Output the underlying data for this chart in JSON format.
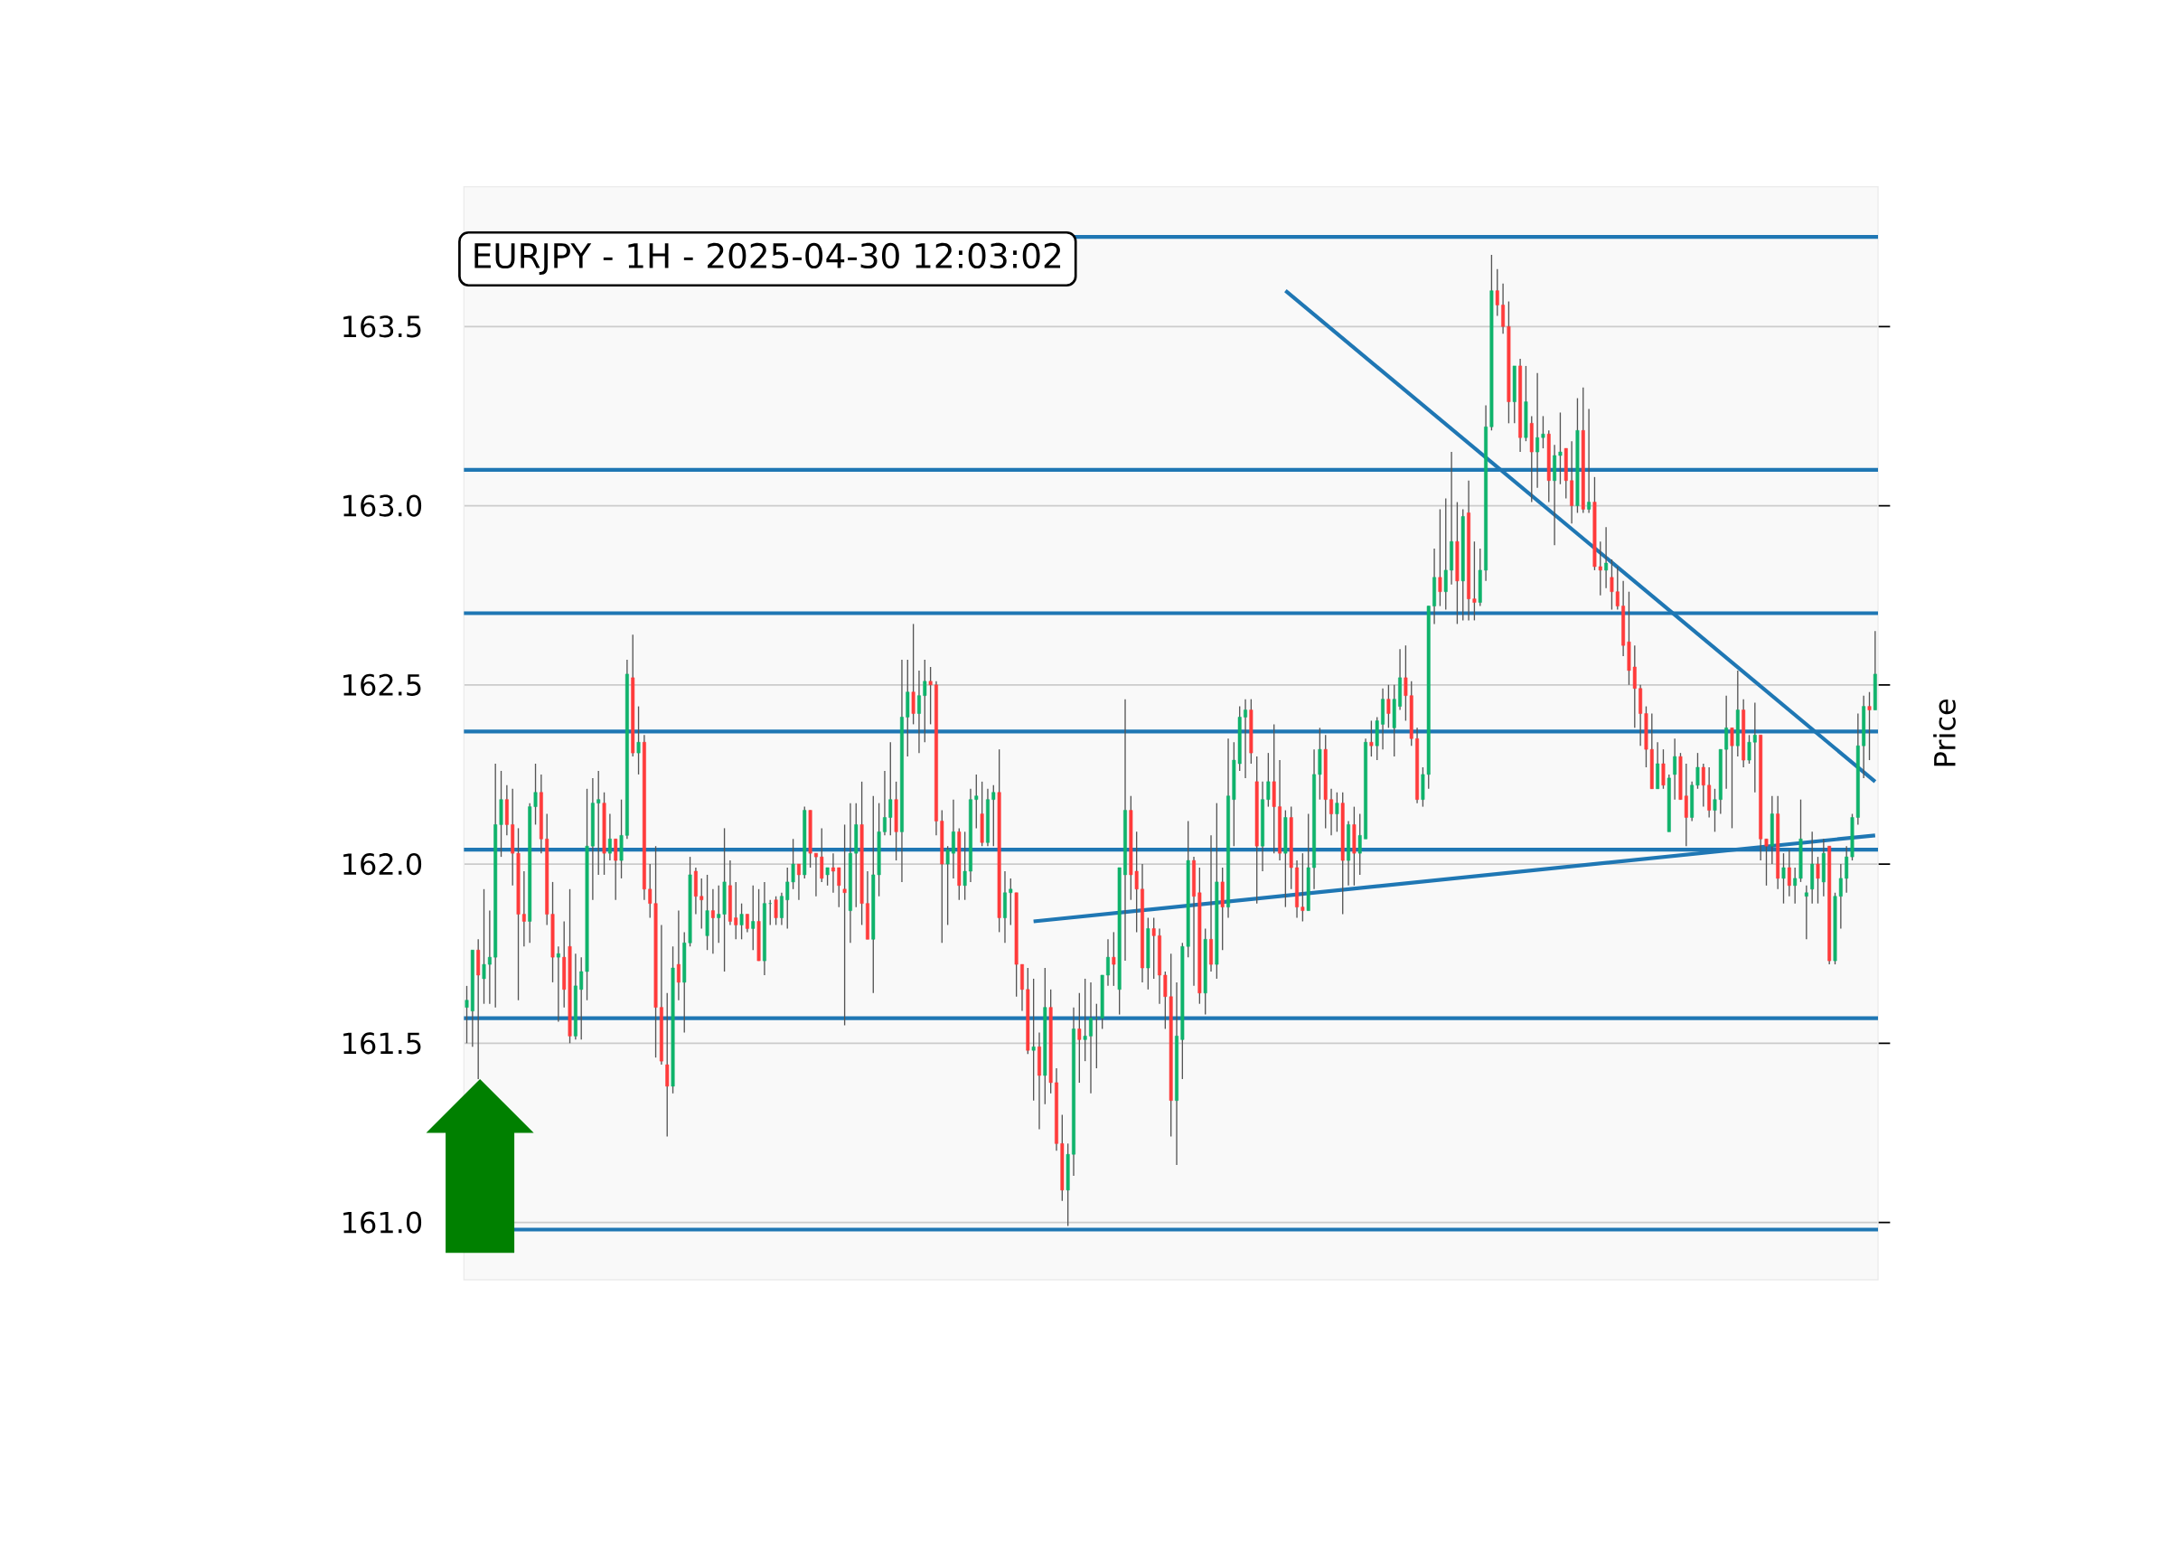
{
  "chart_data": {
    "type": "candlestick",
    "title": "EURJPY - 1H - 2025-04-30 12:03:02",
    "ylabel": "Price",
    "categories": [
      null,
      null,
      null,
      null,
      null,
      null,
      null,
      null,
      null,
      null,
      null,
      null,
      null,
      null,
      null,
      null,
      null,
      null,
      null,
      null,
      null,
      null,
      null,
      null,
      null,
      null,
      null,
      null,
      null,
      null,
      null,
      null,
      null,
      null,
      null,
      null,
      null,
      null,
      null,
      null,
      null,
      null,
      null,
      null,
      null,
      null,
      null,
      null,
      null,
      null,
      null,
      null,
      null,
      null,
      null,
      null,
      null,
      null,
      null,
      null,
      null,
      null,
      null,
      null,
      null,
      null,
      null,
      null,
      null,
      null,
      null,
      null,
      null,
      null,
      null,
      null,
      null,
      null,
      null,
      null,
      null,
      null,
      null,
      null,
      null,
      null,
      null,
      null,
      null,
      null,
      null,
      null,
      null,
      null,
      null,
      null,
      null,
      null,
      null,
      null,
      null,
      null,
      null,
      null,
      null,
      null,
      null,
      null,
      null,
      null,
      null,
      null,
      null,
      null,
      null,
      null,
      null,
      null,
      null,
      null,
      null,
      null,
      null,
      null,
      null,
      null,
      null,
      null,
      null,
      null,
      null,
      null,
      null,
      null,
      null,
      null,
      null,
      null,
      null,
      null,
      null,
      null,
      null,
      null,
      null,
      null,
      null,
      null,
      null,
      null,
      null,
      null,
      null,
      null,
      null,
      null,
      null,
      null,
      null,
      null,
      null,
      null,
      null,
      null,
      null,
      null,
      null,
      null,
      null,
      null,
      null,
      null,
      null,
      null,
      null,
      null,
      null,
      null,
      null,
      null,
      null,
      null,
      null,
      null,
      null,
      null,
      null,
      null,
      null,
      null,
      null,
      null,
      null,
      null,
      null,
      null,
      null,
      null,
      null,
      null,
      null,
      null,
      null,
      null,
      null,
      null,
      null,
      null,
      null,
      null,
      null,
      null,
      null,
      null,
      null,
      null,
      null,
      null,
      null,
      null,
      null,
      null,
      null,
      null,
      null,
      null,
      null,
      null,
      null,
      null,
      null,
      null,
      null,
      null,
      null,
      null,
      null,
      null,
      null,
      null,
      null,
      null,
      null,
      null,
      null,
      null,
      null
    ],
    "ohlc": [
      [
        161.6,
        161.66,
        161.5,
        161.62
      ],
      [
        161.59,
        161.76,
        161.49,
        161.76
      ],
      [
        161.76,
        161.79,
        161.4,
        161.69
      ],
      [
        161.68,
        161.93,
        161.61,
        161.72
      ],
      [
        161.72,
        161.87,
        161.61,
        161.74
      ],
      [
        161.74,
        162.28,
        161.6,
        162.11
      ],
      [
        162.11,
        162.26,
        162.02,
        162.18
      ],
      [
        162.18,
        162.22,
        162.08,
        162.11
      ],
      [
        162.11,
        162.21,
        161.94,
        162.03
      ],
      [
        162.03,
        162.1,
        161.62,
        161.86
      ],
      [
        161.86,
        161.98,
        161.77,
        161.84
      ],
      [
        161.84,
        162.17,
        161.78,
        162.16
      ],
      [
        162.16,
        162.28,
        162.11,
        162.2
      ],
      [
        162.2,
        162.25,
        162.03,
        162.07
      ],
      [
        162.07,
        162.14,
        161.83,
        161.86
      ],
      [
        161.86,
        161.95,
        161.67,
        161.74
      ],
      [
        161.74,
        161.77,
        161.56,
        161.75
      ],
      [
        161.74,
        161.84,
        161.6,
        161.65
      ],
      [
        161.77,
        161.93,
        161.5,
        161.52
      ],
      [
        161.52,
        161.75,
        161.51,
        161.66
      ],
      [
        161.65,
        161.74,
        161.51,
        161.7
      ],
      [
        161.7,
        162.21,
        161.62,
        162.05
      ],
      [
        162.05,
        162.24,
        161.9,
        162.17
      ],
      [
        162.17,
        162.26,
        161.97,
        162.18
      ],
      [
        162.17,
        162.2,
        161.97,
        162.03
      ],
      [
        162.03,
        162.14,
        162.01,
        162.07
      ],
      [
        162.07,
        162.07,
        161.9,
        162.01
      ],
      [
        162.01,
        162.18,
        161.96,
        162.08
      ],
      [
        162.08,
        162.57,
        162.07,
        162.53
      ],
      [
        162.52,
        162.64,
        162.3,
        162.31
      ],
      [
        162.31,
        162.44,
        162.25,
        162.34
      ],
      [
        162.34,
        162.36,
        161.9,
        161.93
      ],
      [
        161.93,
        162.0,
        161.85,
        161.89
      ],
      [
        161.89,
        162.05,
        161.46,
        161.6
      ],
      [
        161.6,
        161.83,
        161.44,
        161.45
      ],
      [
        161.44,
        161.64,
        161.24,
        161.38
      ],
      [
        161.38,
        161.77,
        161.36,
        161.71
      ],
      [
        161.72,
        161.87,
        161.62,
        161.67
      ],
      [
        161.67,
        161.81,
        161.53,
        161.78
      ],
      [
        161.78,
        162.02,
        161.77,
        161.97
      ],
      [
        161.98,
        161.99,
        161.86,
        161.91
      ],
      [
        161.91,
        161.96,
        161.82,
        161.9
      ],
      [
        161.8,
        161.97,
        161.76,
        161.87
      ],
      [
        161.87,
        161.93,
        161.75,
        161.85
      ],
      [
        161.85,
        161.94,
        161.78,
        161.86
      ],
      [
        161.86,
        162.1,
        161.7,
        161.95
      ],
      [
        161.94,
        162.01,
        161.83,
        161.84
      ],
      [
        161.85,
        161.95,
        161.79,
        161.83
      ],
      [
        161.83,
        161.89,
        161.79,
        161.86
      ],
      [
        161.86,
        161.86,
        161.81,
        161.82
      ],
      [
        161.82,
        161.94,
        161.76,
        161.84
      ],
      [
        161.84,
        161.93,
        161.73,
        161.73
      ],
      [
        161.73,
        161.95,
        161.69,
        161.89
      ],
      [
        161.89,
        161.9,
        161.83,
        161.89
      ],
      [
        161.9,
        161.91,
        161.83,
        161.85
      ],
      [
        161.85,
        161.92,
        161.83,
        161.91
      ],
      [
        161.9,
        161.99,
        161.82,
        161.95
      ],
      [
        161.95,
        162.07,
        161.93,
        162.0
      ],
      [
        162.0,
        162.0,
        161.9,
        161.97
      ],
      [
        161.97,
        162.16,
        161.96,
        162.15
      ],
      [
        162.15,
        162.15,
        161.99,
        162.03
      ],
      [
        162.03,
        162.03,
        161.91,
        162.02
      ],
      [
        162.02,
        162.1,
        161.95,
        161.96
      ],
      [
        161.97,
        161.99,
        161.94,
        161.99
      ],
      [
        161.99,
        162.03,
        161.92,
        161.98
      ],
      [
        161.99,
        161.99,
        161.88,
        161.94
      ],
      [
        161.93,
        162.11,
        161.55,
        161.92
      ],
      [
        161.87,
        162.17,
        161.78,
        162.03
      ],
      [
        162.03,
        162.17,
        161.88,
        162.11
      ],
      [
        162.11,
        162.23,
        161.83,
        161.89
      ],
      [
        161.89,
        161.98,
        161.79,
        161.79
      ],
      [
        161.79,
        162.19,
        161.64,
        161.97
      ],
      [
        161.97,
        162.17,
        161.91,
        162.09
      ],
      [
        162.09,
        162.26,
        162.08,
        162.13
      ],
      [
        162.13,
        162.34,
        162.08,
        162.18
      ],
      [
        162.18,
        162.23,
        162.01,
        162.09
      ],
      [
        162.09,
        162.57,
        161.95,
        162.41
      ],
      [
        162.41,
        162.57,
        162.3,
        162.48
      ],
      [
        162.48,
        162.67,
        162.39,
        162.42
      ],
      [
        162.42,
        162.54,
        162.31,
        162.47
      ],
      [
        162.47,
        162.57,
        162.34,
        162.51
      ],
      [
        162.51,
        162.55,
        162.39,
        162.5
      ],
      [
        162.5,
        162.51,
        162.08,
        162.12
      ],
      [
        162.12,
        162.15,
        161.78,
        162.0
      ],
      [
        162.0,
        162.05,
        161.83,
        162.04
      ],
      [
        162.03,
        162.18,
        161.96,
        162.09
      ],
      [
        162.09,
        162.1,
        161.9,
        161.94
      ],
      [
        161.94,
        162.09,
        161.9,
        161.98
      ],
      [
        161.98,
        162.21,
        161.95,
        162.18
      ],
      [
        162.18,
        162.25,
        162.1,
        162.19
      ],
      [
        162.14,
        162.23,
        162.05,
        162.06
      ],
      [
        162.06,
        162.21,
        162.05,
        162.18
      ],
      [
        162.18,
        162.22,
        162.05,
        162.2
      ],
      [
        162.2,
        162.32,
        161.81,
        161.85
      ],
      [
        161.85,
        161.98,
        161.78,
        161.92
      ],
      [
        161.92,
        161.96,
        161.83,
        161.93
      ],
      [
        161.92,
        161.92,
        161.63,
        161.72
      ],
      [
        161.72,
        161.72,
        161.59,
        161.65
      ],
      [
        161.65,
        161.71,
        161.47,
        161.48
      ],
      [
        161.48,
        161.68,
        161.34,
        161.49
      ],
      [
        161.49,
        161.53,
        161.26,
        161.41
      ],
      [
        161.41,
        161.71,
        161.33,
        161.6
      ],
      [
        161.6,
        161.65,
        161.36,
        161.39
      ],
      [
        161.39,
        161.43,
        161.2,
        161.22
      ],
      [
        161.22,
        161.3,
        161.06,
        161.09
      ],
      [
        161.09,
        161.22,
        160.99,
        161.19
      ],
      [
        161.19,
        161.6,
        161.13,
        161.54
      ],
      [
        161.54,
        161.64,
        161.39,
        161.51
      ],
      [
        161.51,
        161.68,
        161.45,
        161.52
      ],
      [
        161.52,
        161.67,
        161.36,
        161.57
      ],
      [
        161.57,
        161.61,
        161.43,
        161.57
      ],
      [
        161.57,
        161.69,
        161.54,
        161.69
      ],
      [
        161.69,
        161.79,
        161.66,
        161.74
      ],
      [
        161.74,
        161.81,
        161.66,
        161.72
      ],
      [
        161.65,
        161.99,
        161.58,
        161.99
      ],
      [
        161.97,
        162.46,
        161.73,
        162.15
      ],
      [
        162.15,
        162.19,
        161.9,
        161.97
      ],
      [
        161.98,
        162.09,
        161.81,
        161.93
      ],
      [
        161.93,
        162.0,
        161.67,
        161.71
      ],
      [
        161.71,
        161.85,
        161.65,
        161.82
      ],
      [
        161.82,
        161.85,
        161.68,
        161.8
      ],
      [
        161.8,
        161.82,
        161.61,
        161.69
      ],
      [
        161.69,
        161.7,
        161.54,
        161.63
      ],
      [
        161.63,
        161.75,
        161.24,
        161.34
      ],
      [
        161.34,
        161.67,
        161.16,
        161.52
      ],
      [
        161.51,
        161.78,
        161.4,
        161.77
      ],
      [
        161.77,
        162.12,
        161.74,
        162.01
      ],
      [
        162.01,
        162.02,
        161.66,
        161.91
      ],
      [
        161.92,
        161.99,
        161.61,
        161.64
      ],
      [
        161.64,
        161.82,
        161.58,
        161.79
      ],
      [
        161.79,
        162.08,
        161.7,
        161.72
      ],
      [
        161.72,
        162.17,
        161.68,
        161.95
      ],
      [
        161.95,
        161.99,
        161.76,
        161.88
      ],
      [
        161.88,
        162.35,
        161.85,
        162.19
      ],
      [
        162.18,
        162.34,
        162.05,
        162.29
      ],
      [
        162.28,
        162.44,
        162.26,
        162.41
      ],
      [
        162.41,
        162.46,
        162.24,
        162.43
      ],
      [
        162.43,
        162.46,
        162.28,
        162.31
      ],
      [
        162.23,
        162.3,
        161.89,
        162.05
      ],
      [
        162.05,
        162.23,
        161.98,
        162.18
      ],
      [
        162.18,
        162.31,
        162.16,
        162.23
      ],
      [
        162.23,
        162.39,
        162.03,
        162.16
      ],
      [
        162.16,
        162.29,
        162.01,
        162.03
      ],
      [
        162.03,
        162.15,
        161.88,
        162.13
      ],
      [
        162.13,
        162.16,
        161.93,
        161.99
      ],
      [
        161.99,
        162.01,
        161.85,
        161.88
      ],
      [
        161.88,
        162.03,
        161.84,
        161.87
      ],
      [
        161.87,
        162.14,
        161.87,
        161.99
      ],
      [
        161.99,
        162.32,
        161.93,
        162.25
      ],
      [
        162.25,
        162.38,
        162.18,
        162.32
      ],
      [
        162.32,
        162.36,
        162.1,
        162.18
      ],
      [
        162.18,
        162.21,
        162.08,
        162.14
      ],
      [
        162.14,
        162.2,
        162.09,
        162.17
      ],
      [
        162.17,
        162.2,
        161.86,
        162.01
      ],
      [
        162.01,
        162.12,
        161.94,
        162.11
      ],
      [
        162.11,
        162.16,
        161.94,
        162.03
      ],
      [
        162.03,
        162.14,
        161.97,
        162.08
      ],
      [
        162.07,
        162.35,
        162.07,
        162.34
      ],
      [
        162.34,
        162.4,
        162.3,
        162.33
      ],
      [
        162.33,
        162.41,
        162.29,
        162.4
      ],
      [
        162.39,
        162.49,
        162.32,
        162.46
      ],
      [
        162.46,
        162.5,
        162.38,
        162.42
      ],
      [
        162.38,
        162.5,
        162.3,
        162.46
      ],
      [
        162.44,
        162.6,
        162.43,
        162.52
      ],
      [
        162.52,
        162.61,
        162.4,
        162.47
      ],
      [
        162.47,
        162.51,
        162.33,
        162.35
      ],
      [
        162.35,
        162.38,
        162.17,
        162.18
      ],
      [
        162.18,
        162.27,
        162.16,
        162.25
      ],
      [
        162.25,
        162.72,
        162.21,
        162.72
      ],
      [
        162.72,
        162.88,
        162.67,
        162.8
      ],
      [
        162.8,
        162.99,
        162.72,
        162.76
      ],
      [
        162.76,
        163.02,
        162.71,
        162.82
      ],
      [
        162.82,
        163.15,
        162.78,
        162.9
      ],
      [
        162.9,
        163.01,
        162.67,
        162.79
      ],
      [
        162.79,
        162.99,
        162.68,
        162.97
      ],
      [
        162.98,
        163.07,
        162.68,
        162.74
      ],
      [
        162.74,
        162.9,
        162.68,
        162.73
      ],
      [
        162.73,
        162.88,
        162.72,
        162.82
      ],
      [
        162.82,
        163.28,
        162.79,
        163.22
      ],
      [
        163.22,
        163.7,
        163.21,
        163.6
      ],
      [
        163.6,
        163.66,
        163.53,
        163.56
      ],
      [
        163.56,
        163.62,
        163.48,
        163.5
      ],
      [
        163.5,
        163.57,
        163.23,
        163.29
      ],
      [
        163.29,
        163.39,
        163.23,
        163.39
      ],
      [
        163.39,
        163.41,
        163.15,
        163.19
      ],
      [
        163.19,
        163.39,
        163.18,
        163.29
      ],
      [
        163.23,
        163.25,
        163.01,
        163.15
      ],
      [
        163.15,
        163.37,
        163.05,
        163.19
      ],
      [
        163.19,
        163.25,
        163.16,
        163.2
      ],
      [
        163.2,
        163.21,
        163.01,
        163.07
      ],
      [
        163.07,
        163.17,
        162.89,
        163.14
      ],
      [
        163.14,
        163.26,
        163.06,
        163.15
      ],
      [
        163.16,
        163.16,
        163.02,
        163.07
      ],
      [
        163.07,
        163.18,
        162.95,
        163.0
      ],
      [
        163.0,
        163.3,
        162.98,
        163.21
      ],
      [
        163.21,
        163.33,
        162.98,
        162.99
      ],
      [
        162.99,
        163.27,
        162.98,
        163.01
      ],
      [
        163.01,
        163.08,
        162.82,
        162.83
      ],
      [
        162.83,
        162.9,
        162.75,
        162.82
      ],
      [
        162.82,
        162.94,
        162.77,
        162.84
      ],
      [
        162.8,
        162.85,
        162.71,
        162.76
      ],
      [
        162.76,
        162.83,
        162.71,
        162.72
      ],
      [
        162.72,
        162.79,
        162.58,
        162.61
      ],
      [
        162.62,
        162.76,
        162.5,
        162.54
      ],
      [
        162.55,
        162.61,
        162.38,
        162.49
      ],
      [
        162.49,
        162.5,
        162.33,
        162.42
      ],
      [
        162.42,
        162.44,
        162.27,
        162.32
      ],
      [
        162.32,
        162.42,
        162.21,
        162.21
      ],
      [
        162.21,
        162.34,
        162.21,
        162.28
      ],
      [
        162.28,
        162.32,
        162.21,
        162.22
      ],
      [
        162.09,
        162.25,
        162.09,
        162.24
      ],
      [
        162.25,
        162.35,
        162.18,
        162.3
      ],
      [
        162.3,
        162.31,
        162.18,
        162.18
      ],
      [
        162.19,
        162.28,
        162.05,
        162.13
      ],
      [
        162.13,
        162.23,
        162.12,
        162.22
      ],
      [
        162.22,
        162.31,
        162.21,
        162.27
      ],
      [
        162.27,
        162.28,
        162.16,
        162.22
      ],
      [
        162.22,
        162.27,
        162.13,
        162.15
      ],
      [
        162.15,
        162.21,
        162.09,
        162.18
      ],
      [
        162.18,
        162.32,
        162.14,
        162.32
      ],
      [
        162.32,
        162.47,
        162.21,
        162.38
      ],
      [
        162.38,
        162.38,
        162.1,
        162.33
      ],
      [
        162.33,
        162.54,
        162.3,
        162.43
      ],
      [
        162.43,
        162.46,
        162.27,
        162.29
      ],
      [
        162.29,
        162.36,
        162.28,
        162.34
      ],
      [
        162.34,
        162.45,
        162.2,
        162.36
      ],
      [
        162.36,
        162.36,
        162.01,
        162.07
      ],
      [
        162.07,
        162.07,
        161.94,
        162.05
      ],
      [
        162.05,
        162.19,
        162.0,
        162.14
      ],
      [
        162.14,
        162.19,
        161.93,
        161.96
      ],
      [
        161.96,
        162.03,
        161.89,
        161.99
      ],
      [
        161.99,
        162.04,
        161.91,
        161.94
      ],
      [
        161.94,
        161.99,
        161.89,
        161.96
      ],
      [
        161.96,
        162.18,
        161.95,
        162.07
      ],
      [
        161.91,
        161.94,
        161.79,
        161.92
      ],
      [
        161.93,
        162.09,
        161.89,
        162.0
      ],
      [
        162.0,
        162.02,
        161.89,
        161.96
      ],
      [
        161.95,
        162.07,
        161.91,
        162.03
      ],
      [
        162.05,
        162.05,
        161.72,
        161.73
      ],
      [
        161.73,
        161.92,
        161.72,
        161.91
      ],
      [
        161.91,
        162.0,
        161.82,
        161.96
      ],
      [
        161.96,
        162.05,
        161.92,
        162.02
      ],
      [
        162.02,
        162.14,
        162.01,
        162.13
      ],
      [
        162.13,
        162.42,
        162.11,
        162.33
      ],
      [
        162.33,
        162.47,
        162.24,
        162.44
      ],
      [
        162.44,
        162.48,
        162.29,
        162.43
      ],
      [
        162.43,
        162.65,
        162.43,
        162.53
      ]
    ],
    "series": [
      {
        "type": "line",
        "color": "#1f77b4",
        "values": [
          null,
          null,
          null,
          null,
          null,
          null,
          null,
          null,
          null,
          null,
          null,
          null,
          null,
          null,
          null,
          null,
          null,
          null,
          null,
          null,
          null,
          null,
          null,
          null,
          null,
          null,
          null,
          null,
          null,
          null,
          null,
          null,
          null,
          null,
          null,
          null,
          null,
          null,
          null,
          null,
          null,
          null,
          null,
          null,
          null,
          null,
          null,
          null,
          null,
          null,
          null,
          null,
          null,
          null,
          null,
          null,
          null,
          null,
          null,
          null,
          null,
          null,
          null,
          null,
          null,
          null,
          null,
          null,
          null,
          null,
          null,
          null,
          null,
          null,
          null,
          null,
          null,
          null,
          null,
          null,
          null,
          null,
          null,
          null,
          null,
          null,
          null,
          null,
          null,
          null,
          null,
          null,
          null,
          null,
          null,
          null,
          null,
          null,
          null,
          null,
          null,
          null,
          null,
          null,
          null,
          null,
          null,
          null,
          null,
          null,
          null,
          null,
          null,
          null,
          null,
          null,
          null,
          null,
          null,
          null,
          null,
          null,
          null,
          null,
          null,
          null,
          null,
          null,
          null,
          null,
          null,
          null,
          null,
          null,
          null,
          null,
          null,
          null,
          null,
          null,
          null,
          null,
          null,
          163.6,
          null,
          null,
          null,
          null,
          null,
          null,
          null,
          null,
          null,
          null,
          null,
          null,
          null,
          null,
          null,
          null,
          null,
          null,
          null,
          null,
          null,
          null,
          null,
          null,
          null,
          null,
          null,
          null,
          null,
          null,
          null,
          null,
          null,
          null,
          null,
          null,
          null,
          null,
          null,
          null,
          null,
          null,
          null,
          null,
          null,
          null,
          null,
          null,
          null,
          null,
          null,
          null,
          null,
          null,
          null,
          null,
          null,
          null,
          null,
          null,
          null,
          null,
          null,
          null,
          null,
          null,
          null,
          null,
          null,
          null,
          null,
          null,
          null,
          null,
          null,
          null,
          null,
          null,
          null,
          null,
          null,
          null,
          null,
          null,
          null,
          null,
          null,
          null,
          null,
          null,
          null,
          null,
          null,
          null,
          null,
          null,
          null,
          null,
          null,
          null,
          null,
          null,
          162.23
        ]
      },
      {
        "type": "line",
        "color": "#1f77b4",
        "values": [
          null,
          null,
          null,
          null,
          null,
          null,
          null,
          null,
          null,
          null,
          null,
          null,
          null,
          null,
          null,
          null,
          null,
          null,
          null,
          null,
          null,
          null,
          null,
          null,
          null,
          null,
          null,
          null,
          null,
          null,
          null,
          null,
          null,
          null,
          null,
          null,
          null,
          null,
          null,
          null,
          null,
          null,
          null,
          null,
          null,
          null,
          null,
          null,
          null,
          null,
          null,
          null,
          null,
          null,
          null,
          null,
          null,
          null,
          null,
          null,
          null,
          null,
          null,
          null,
          null,
          null,
          null,
          null,
          null,
          null,
          null,
          null,
          null,
          null,
          null,
          null,
          null,
          null,
          null,
          null,
          null,
          null,
          null,
          null,
          null,
          null,
          null,
          null,
          null,
          null,
          null,
          null,
          null,
          null,
          null,
          null,
          null,
          null,
          null,
          161.84,
          null,
          null,
          null,
          null,
          null,
          null,
          null,
          null,
          null,
          null,
          null,
          null,
          null,
          null,
          null,
          null,
          null,
          null,
          null,
          null,
          null,
          null,
          null,
          null,
          null,
          null,
          null,
          null,
          null,
          null,
          null,
          null,
          null,
          null,
          null,
          null,
          null,
          null,
          null,
          null,
          null,
          null,
          null,
          null,
          null,
          null,
          null,
          null,
          null,
          null,
          null,
          null,
          null,
          null,
          null,
          null,
          null,
          null,
          null,
          null,
          null,
          null,
          null,
          null,
          null,
          null,
          null,
          null,
          null,
          null,
          null,
          null,
          null,
          null,
          null,
          null,
          null,
          null,
          null,
          null,
          null,
          null,
          null,
          null,
          null,
          null,
          null,
          null,
          null,
          null,
          null,
          null,
          null,
          null,
          null,
          null,
          null,
          null,
          null,
          null,
          null,
          null,
          null,
          null,
          null,
          null,
          null,
          null,
          null,
          null,
          null,
          null,
          null,
          null,
          null,
          null,
          null,
          null,
          null,
          null,
          null,
          null,
          null,
          null,
          null,
          null,
          null,
          null,
          null,
          null,
          null,
          null,
          null,
          null,
          null,
          null,
          null,
          null,
          null,
          null,
          null,
          null,
          null,
          null,
          null,
          null,
          162.08
        ]
      }
    ],
    "ref_lines": [
      {
        "axis": "y",
        "value": 163.75,
        "color": "#1f77b4"
      },
      {
        "axis": "y",
        "value": 163.1,
        "color": "#1f77b4"
      },
      {
        "axis": "y",
        "value": 162.7,
        "color": "#1f77b4"
      },
      {
        "axis": "y",
        "value": 162.37,
        "color": "#1f77b4"
      },
      {
        "axis": "y",
        "value": 162.04,
        "color": "#1f77b4"
      },
      {
        "axis": "y",
        "value": 161.57,
        "color": "#1f77b4"
      },
      {
        "axis": "y",
        "value": 160.98,
        "color": "#1f77b4"
      }
    ],
    "ylim": [
      160.84,
      163.89
    ],
    "yticks": [
      {
        "value": 161,
        "label": "161.0"
      },
      161.5,
      {
        "value": 162,
        "label": "162.0"
      },
      162.5,
      {
        "value": 163,
        "label": "163.0"
      },
      163.5
    ],
    "grid": "y",
    "tick_labels": "y"
  }
}
